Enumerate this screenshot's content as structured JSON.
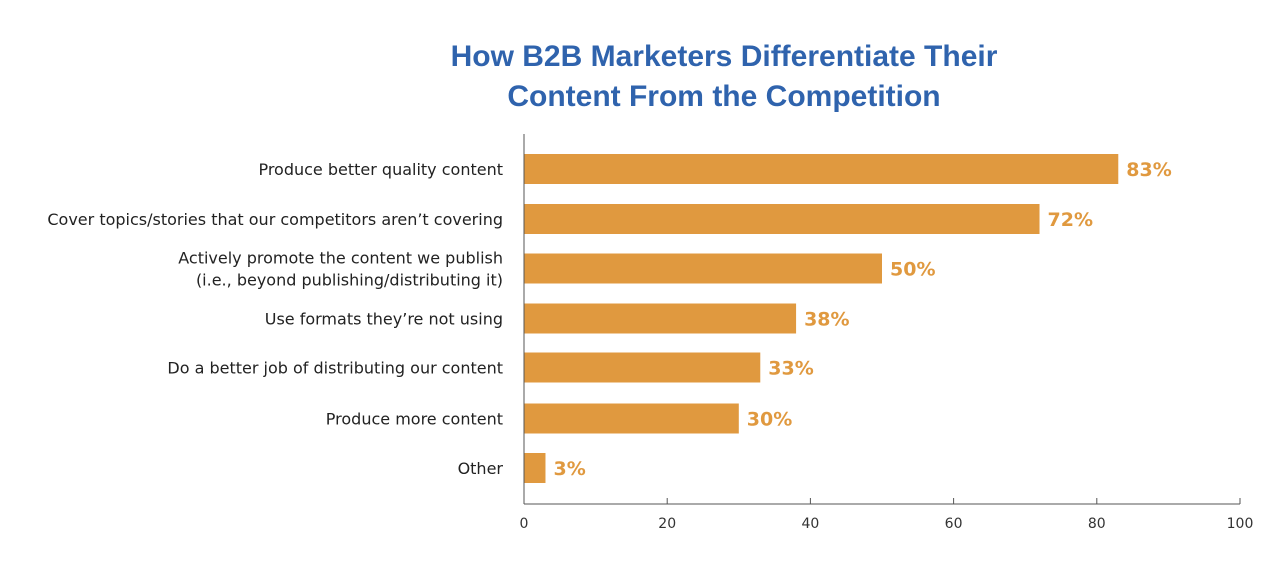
{
  "chart_data": {
    "type": "bar",
    "orientation": "horizontal",
    "title": [
      "How B2B Marketers Differentiate Their",
      "Content From the Competition"
    ],
    "categories": [
      [
        "Produce better quality content"
      ],
      [
        "Cover topics/stories that our competitors aren’t covering"
      ],
      [
        "Actively promote the content we publish",
        "(i.e., beyond publishing/distributing it)"
      ],
      [
        "Use formats they’re not using"
      ],
      [
        "Do a better job of distributing our content"
      ],
      [
        "Produce more content"
      ],
      [
        "Other"
      ]
    ],
    "values": [
      83,
      72,
      50,
      38,
      33,
      30,
      3
    ],
    "value_labels": [
      "83%",
      "72%",
      "50%",
      "38%",
      "33%",
      "30%",
      "3%"
    ],
    "xlim": [
      0,
      100
    ],
    "xticks": [
      0,
      20,
      40,
      60,
      80,
      100
    ],
    "xtick_labels": [
      "0",
      "20",
      "40",
      "60",
      "80",
      "100"
    ],
    "xlabel": "",
    "ylabel": "",
    "grid": false,
    "colors": {
      "bar": "#e0993f",
      "title": "#2f63ad",
      "axis": "#555555"
    }
  }
}
